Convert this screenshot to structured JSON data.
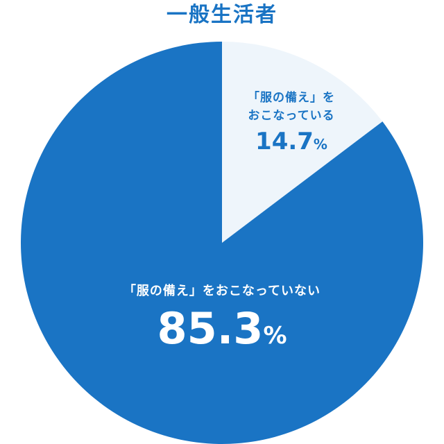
{
  "title": "一般生活者",
  "chart_data": {
    "type": "pie",
    "title": "一般生活者",
    "slices": [
      {
        "label_line1": "「服の備え」を",
        "label_line2": "おこなっている",
        "value": 14.7,
        "value_text": "14.7",
        "unit": "%",
        "color": "#eef5fb",
        "text_color": "#1a74c4"
      },
      {
        "label_line1": "「服の備え」をおこなっていない",
        "value": 85.3,
        "value_text": "85.3",
        "unit": "%",
        "color": "#1a74c4",
        "text_color": "#ffffff"
      }
    ]
  }
}
